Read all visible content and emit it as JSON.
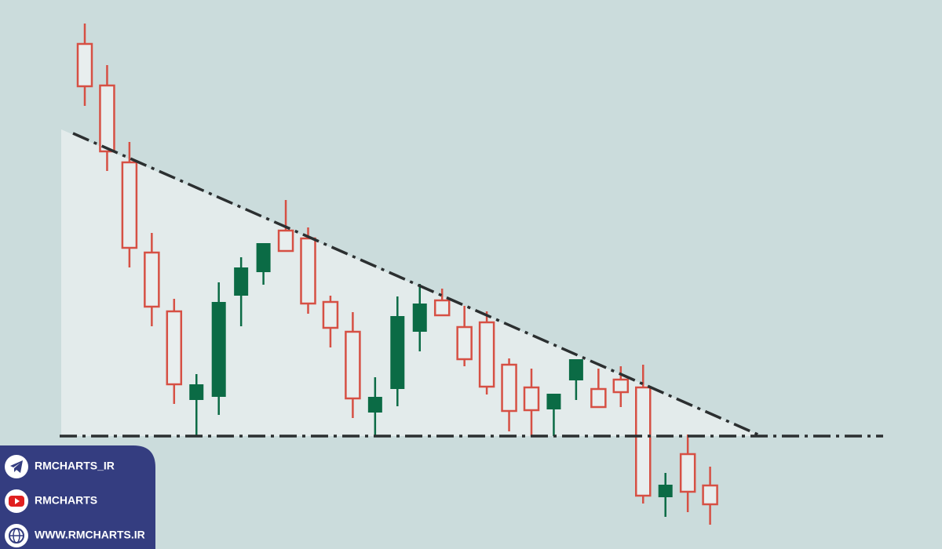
{
  "chart_data": {
    "type": "candlestick",
    "categories": [
      null,
      null,
      null,
      null,
      null,
      null,
      null,
      null,
      null,
      null,
      null,
      null,
      null,
      null,
      null,
      null,
      null,
      null,
      null,
      null,
      null,
      null,
      null,
      null,
      null,
      null,
      null,
      null,
      null
    ],
    "open": [
      644,
      591,
      493,
      378,
      303,
      190,
      194,
      323,
      353,
      406,
      396,
      315,
      277,
      174,
      204,
      277,
      317,
      283,
      289,
      235,
      206,
      178,
      215,
      204,
      216,
      206,
      66,
      121,
      81
    ],
    "high": [
      670,
      617,
      519,
      403,
      319,
      223,
      340,
      372,
      390,
      445,
      410,
      323,
      302,
      219,
      322,
      338,
      332,
      310,
      303,
      243,
      230,
      198,
      242,
      230,
      233,
      235,
      97,
      146,
      105
    ],
    "low": [
      565,
      482,
      359,
      284,
      185,
      145,
      171,
      284,
      337,
      380,
      300,
      257,
      167,
      144,
      182,
      252,
      298,
      233,
      197,
      150,
      144,
      144,
      190,
      181,
      181,
      58,
      41,
      47,
      31
    ],
    "close": [
      590,
      507,
      384,
      309,
      210,
      210,
      315,
      359,
      390,
      380,
      313,
      282,
      192,
      194,
      297,
      313,
      298,
      242,
      207,
      176,
      177,
      198,
      242,
      181,
      200,
      68,
      82,
      73,
      57
    ],
    "up_color": "#0b6b45",
    "down_color": "#d65044",
    "ylim": [
      0,
      700
    ]
  },
  "social": [
    "RMCHARTS_IR",
    "RMCHARTS",
    "WWW.RMCHARTS.IR"
  ]
}
